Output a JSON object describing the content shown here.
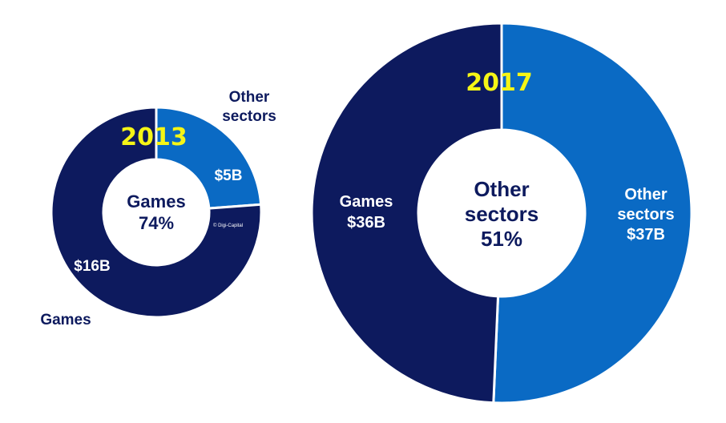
{
  "colors": {
    "games": "#0d1a5e",
    "other": "#0a6ac4",
    "year_text": "#f5f516",
    "center_text": "#0d1a5e",
    "slice_text": "#ffffff",
    "background": "#ffffff"
  },
  "chart_data": [
    {
      "type": "pie",
      "year": "2013",
      "slices": [
        {
          "name": "Other sectors",
          "value": 5,
          "value_label": "$5B"
        },
        {
          "name": "Games",
          "value": 16,
          "value_label": "$16B"
        }
      ],
      "center_label": [
        "Games",
        "74%"
      ],
      "outside_labels": {
        "other": [
          "Other",
          "sectors"
        ],
        "games": "Games"
      },
      "watermark": "© Digi-Capital"
    },
    {
      "type": "pie",
      "year": "2017",
      "slices": [
        {
          "name": "Other sectors",
          "value": 37,
          "value_label": "$37B",
          "inside_label": [
            "Other",
            "sectors",
            "$37B"
          ]
        },
        {
          "name": "Games",
          "value": 36,
          "value_label": "$36B",
          "inside_label": [
            "Games",
            "$36B"
          ]
        }
      ],
      "center_label": [
        "Other",
        "sectors",
        "51%"
      ]
    }
  ]
}
